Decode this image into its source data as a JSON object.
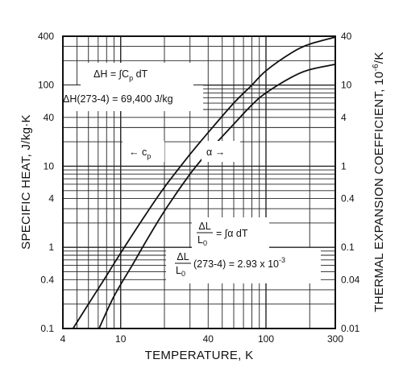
{
  "chart_data": {
    "type": "line",
    "title": "",
    "xlabel": "TEMPERATURE, K",
    "ylabel_left": "SPECIFIC HEAT, J/kg·K",
    "ylabel_right_base": "THERMAL EXPANSION COEFFICIENT, 10",
    "ylabel_right_exp": "-6",
    "ylabel_right_unit": "/K",
    "xscale": "log",
    "yscale": "log",
    "xlim": [
      4,
      300
    ],
    "ylim_left": [
      0.1,
      400
    ],
    "ylim_right": [
      0.01,
      40
    ],
    "grid": true,
    "x_ticks": [
      4,
      10,
      40,
      100,
      300
    ],
    "x_tick_labels": [
      "4",
      "10",
      "40",
      "100",
      "300"
    ],
    "y_left_ticks": [
      0.1,
      0.4,
      1,
      4,
      10,
      40,
      100,
      400
    ],
    "y_left_tick_labels": [
      "0.1",
      "0.4",
      "1",
      "4",
      "10",
      "40",
      "100",
      "400"
    ],
    "y_right_ticks": [
      0.01,
      0.04,
      0.1,
      0.4,
      1,
      4,
      10,
      40
    ],
    "y_right_tick_labels": [
      "0.01",
      "0.04",
      "0.1",
      "0.4",
      "1",
      "4",
      "10",
      "40"
    ],
    "series": [
      {
        "name": "",
        "axis": "left",
        "curve_label": "← c",
        "curve_label_sub": "p",
        "x": [
          4.7,
          6,
          8,
          10,
          15,
          20,
          30,
          40,
          60,
          80,
          100,
          150,
          200,
          300
        ],
        "y": [
          0.1,
          0.2,
          0.45,
          0.85,
          2.6,
          5.5,
          14,
          26,
          60,
          100,
          150,
          250,
          320,
          390
        ]
      },
      {
        "name": "",
        "axis": "right",
        "curve_label": "α →",
        "curve_label_sub": "",
        "x": [
          7.1,
          9,
          12,
          15,
          20,
          30,
          40,
          60,
          80,
          100,
          150,
          200,
          300
        ],
        "y": [
          0.01,
          0.025,
          0.06,
          0.12,
          0.28,
          0.8,
          1.5,
          3.3,
          5.7,
          8,
          12.5,
          15.5,
          18
        ]
      }
    ],
    "annotations": {
      "dh_integral": {
        "prefix": "ΔH = ",
        "integral": "∫C",
        "sub": "p",
        "suffix": " dT"
      },
      "dh_value": {
        "text": "ΔH(273-4) = 69,400 J/kg"
      },
      "dl_integral": {
        "num": "ΔL",
        "den": "L",
        "den_sub": "0",
        "suffix": " = ∫α dT"
      },
      "dl_value": {
        "num": "ΔL",
        "den": "L",
        "den_sub": "0",
        "text": " (273-4) = 2.93 x 10",
        "exp": "-3"
      }
    },
    "colors": {
      "line": "#111111",
      "grid": "#222222",
      "background": "#ffffff"
    }
  }
}
